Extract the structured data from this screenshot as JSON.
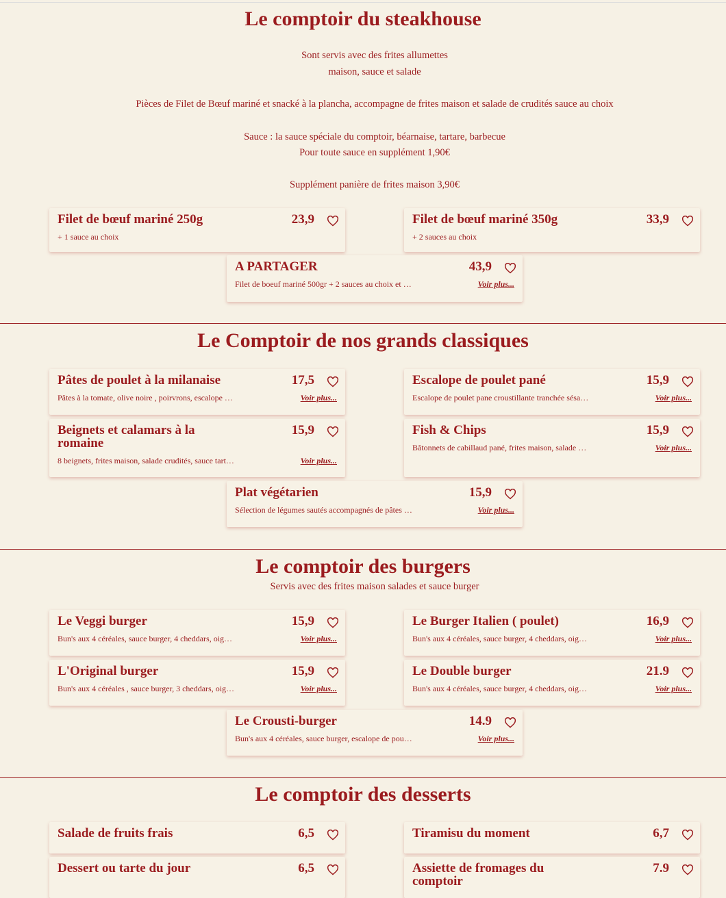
{
  "sections": [
    {
      "title": "Le comptoir du steakhouse",
      "description": [
        "Sont servis avec des frites allumettes",
        "maison, sauce et salade",
        "Pièces de Filet de Bœuf mariné et snacké à la plancha, accompagne de frites maison et salade de crudités sauce au choix",
        "Sauce : la sauce spéciale du comptoir, béarnaise, tartare, barbecue",
        "Pour toute sauce en supplément 1,90€",
        "Supplément panière de frites maison 3,90€"
      ],
      "items": [
        {
          "name": "Filet de bœuf mariné 250g",
          "price": "23,9",
          "description": "+ 1 sauce au choix"
        },
        {
          "name": "Filet de bœuf mariné 350g",
          "price": "33,9",
          "description": "+ 2 sauces au choix"
        },
        {
          "name": "A PARTAGER",
          "price": "43,9",
          "description": "Filet de boeuf mariné 500gr + 2 sauces au choix et …",
          "more": "Voir plus..."
        }
      ]
    },
    {
      "title": "Le Comptoir de nos grands classiques",
      "items": [
        {
          "name": "Pâtes de poulet à la milanaise",
          "price": "17,5",
          "description": "Pâtes à la tomate, olive noire , poirvrons, escalope …",
          "more": "Voir plus..."
        },
        {
          "name": "Escalope de poulet pané",
          "price": "15,9",
          "description": "Escalope de poulet pane croustillante tranchée sésa…",
          "more": "Voir plus..."
        },
        {
          "name": "Beignets et calamars à la romaine",
          "price": "15,9",
          "description": "8 beignets, frites maison, salade crudités, sauce tart…",
          "more": "Voir plus..."
        },
        {
          "name": "Fish & Chips",
          "price": "15,9",
          "description": "Bâtonnets de cabillaud pané, frites maison, salade …",
          "more": "Voir plus..."
        },
        {
          "name": "Plat végétarien",
          "price": "15,9",
          "description": "Sélection de légumes sautés accompagnés de pâtes …",
          "more": "Voir plus..."
        }
      ]
    },
    {
      "title": "Le comptoir des burgers",
      "subtitle": "Servis avec des frites maison salades et sauce burger",
      "items": [
        {
          "name": "Le Veggi burger",
          "price": "15,9",
          "description": "Bun's aux 4 céréales, sauce burger, 4 cheddars, oig…",
          "more": "Voir plus..."
        },
        {
          "name": "Le Burger Italien ( poulet)",
          "price": "16,9",
          "description": "Bun's aux 4 céréales, sauce burger, 4 cheddars, oig…",
          "more": "Voir plus..."
        },
        {
          "name": "L'Original burger",
          "price": "15,9",
          "description": "Bun's aux 4 céréales , sauce burger, 3 cheddars, oig…",
          "more": "Voir plus..."
        },
        {
          "name": "Le Double burger",
          "price": "21.9",
          "description": "Bun's aux 4 céréales, sauce burger, 4 cheddars, oig…",
          "more": "Voir plus..."
        },
        {
          "name": "Le Crousti-burger",
          "price": "14.9",
          "description": "Bun's aux 4 céréales, sauce burger, escalope de pou…",
          "more": "Voir plus..."
        }
      ]
    },
    {
      "title": "Le comptoir des desserts",
      "items": [
        {
          "name": "Salade de fruits frais",
          "price": "6,5"
        },
        {
          "name": "Tiramisu du moment",
          "price": "6,7"
        },
        {
          "name": "Dessert ou tarte du jour",
          "price": "6,5"
        },
        {
          "name": "Assiette de fromages du comptoir",
          "price": "7.9"
        }
      ]
    }
  ]
}
